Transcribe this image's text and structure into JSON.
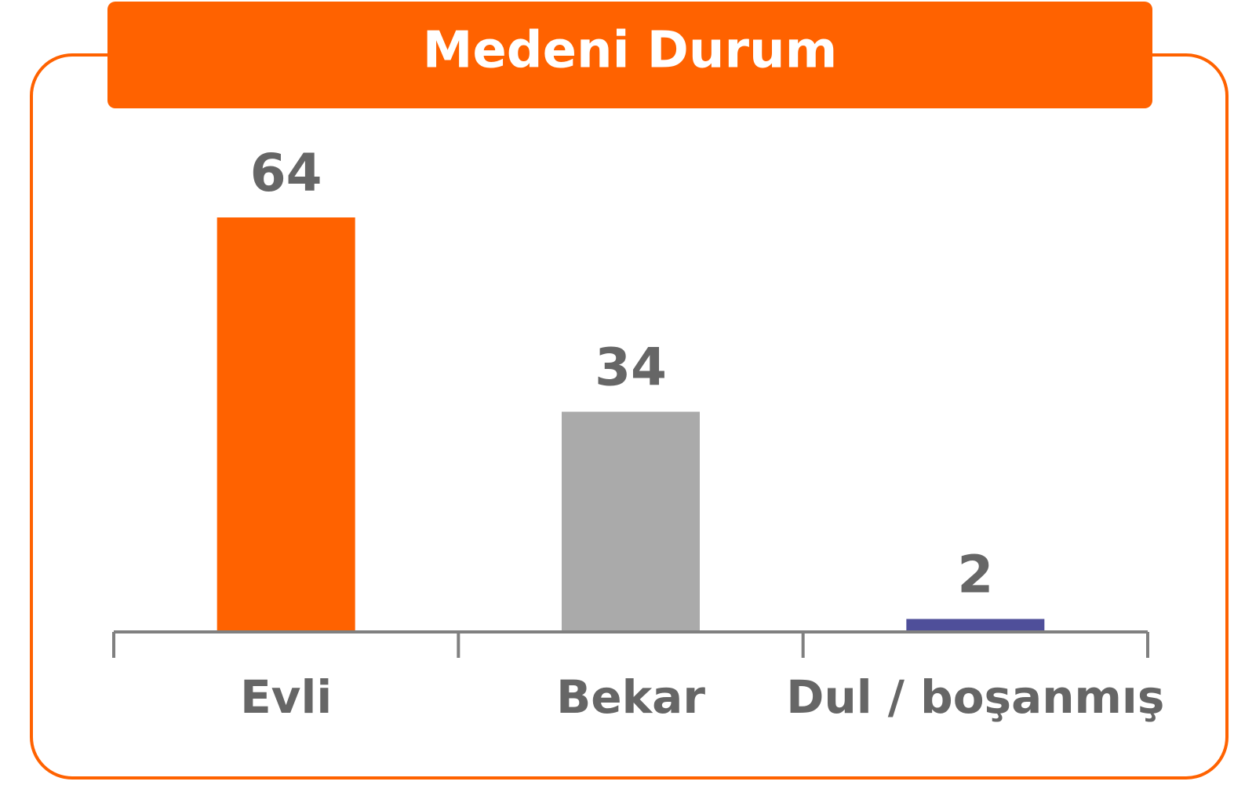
{
  "chart_data": {
    "type": "bar",
    "title": "Medeni Durum",
    "categories": [
      "Evli",
      "Bekar",
      "Dul / boşanmış"
    ],
    "values": [
      64,
      34,
      2
    ],
    "colors": [
      "#ff6200",
      "#aaaaaa",
      "#4f4f9a"
    ]
  }
}
